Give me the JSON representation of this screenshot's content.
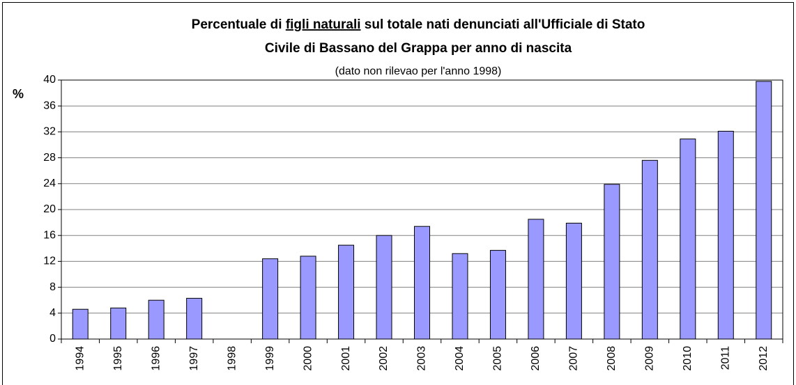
{
  "chart_data": {
    "type": "bar",
    "title": [
      "Percentuale di ",
      "figli naturali",
      " sul totale nati denunciati all'Ufficiale di Stato",
      "Civile di Bassano del Grappa per anno di nascita"
    ],
    "subtitle": "(dato non rilevao per l'anno 1998)",
    "ylabel": "%",
    "categories": [
      "1994",
      "1995",
      "1996",
      "1997",
      "1998",
      "1999",
      "2000",
      "2001",
      "2002",
      "2003",
      "2004",
      "2005",
      "2006",
      "2007",
      "2008",
      "2009",
      "2010",
      "2011",
      "2012"
    ],
    "values": [
      4.6,
      4.8,
      6.0,
      6.3,
      null,
      12.4,
      12.8,
      14.5,
      16.0,
      17.4,
      13.2,
      13.7,
      18.5,
      17.9,
      23.9,
      27.6,
      30.9,
      32.1,
      39.8
    ],
    "color": "#9999ff",
    "ylim": [
      0,
      40
    ],
    "yticks": [
      0,
      4,
      8,
      12,
      16,
      20,
      24,
      28,
      32,
      36,
      40
    ],
    "grid": true
  }
}
